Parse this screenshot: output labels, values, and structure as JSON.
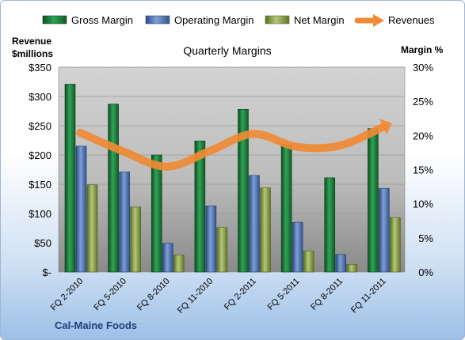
{
  "chart_data": {
    "type": "bar",
    "title": "Quarterly Margins",
    "left_axis": {
      "label_line1": "Revenue",
      "label_line2": "$millions",
      "min": 0,
      "max": 350,
      "step": 50,
      "tick_labels": [
        "$-",
        "$50",
        "$100",
        "$150",
        "$200",
        "$250",
        "$300",
        "$350"
      ]
    },
    "right_axis": {
      "label": "Margin %",
      "min": 0,
      "max": 30,
      "step": 5,
      "tick_labels": [
        "0%",
        "5%",
        "10%",
        "15%",
        "20%",
        "25%",
        "30%"
      ]
    },
    "categories": [
      "FQ 2-2010",
      "FQ 5-2010",
      "FQ 8-2010",
      "FQ 11-2010",
      "FQ 2-2011",
      "FQ 5-2011",
      "FQ 8-2011",
      "FQ 11-2011"
    ],
    "series": [
      {
        "name": "Gross Margin",
        "kind": "bar",
        "axis": "left",
        "color": "#1e7a3c",
        "values": [
          321,
          287,
          200,
          224,
          278,
          217,
          161,
          245
        ]
      },
      {
        "name": "Operating Margin",
        "kind": "bar",
        "axis": "left",
        "color": "#4f73b3",
        "values": [
          215,
          171,
          49,
          113,
          165,
          85,
          30,
          143
        ]
      },
      {
        "name": "Net Margin",
        "kind": "bar",
        "axis": "left",
        "color": "#8fa84a",
        "values": [
          149,
          111,
          29,
          76,
          144,
          36,
          13,
          93
        ]
      },
      {
        "name": "Revenues",
        "kind": "line",
        "axis": "left",
        "color": "#f08a35",
        "values": [
          238,
          206,
          180,
          207,
          236,
          214,
          216,
          248
        ]
      }
    ],
    "grid": true,
    "legend_position": "top"
  },
  "footer": {
    "company": "Cal-Maine Foods"
  }
}
